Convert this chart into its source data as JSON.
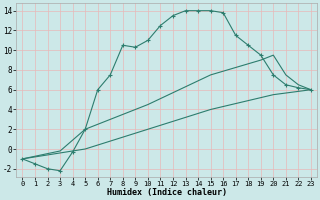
{
  "xlabel": "Humidex (Indice chaleur)",
  "bg_color": "#cce8e8",
  "grid_color": "#b8d8d8",
  "line_color": "#2d7d6e",
  "xlim": [
    -0.5,
    23.5
  ],
  "ylim": [
    -2.8,
    14.8
  ],
  "xticks": [
    0,
    1,
    2,
    3,
    4,
    5,
    6,
    7,
    8,
    9,
    10,
    11,
    12,
    13,
    14,
    15,
    16,
    17,
    18,
    19,
    20,
    21,
    22,
    23
  ],
  "yticks": [
    -2,
    0,
    2,
    4,
    6,
    8,
    10,
    12,
    14
  ],
  "line1_x": [
    0,
    1,
    2,
    3,
    4,
    5,
    6,
    7,
    8,
    9,
    10,
    11,
    12,
    13,
    14,
    15,
    16,
    17,
    18,
    19,
    20,
    21,
    22,
    23
  ],
  "line1_y": [
    -1.0,
    -1.5,
    -2.0,
    -2.2,
    -0.3,
    2.0,
    6.0,
    7.5,
    10.5,
    10.3,
    11.0,
    12.5,
    13.5,
    14.0,
    14.0,
    14.0,
    13.8,
    11.5,
    10.5,
    9.5,
    7.5,
    6.5,
    6.2,
    6.0
  ],
  "line2_x": [
    0,
    3,
    5,
    10,
    15,
    19,
    20,
    21,
    22,
    23
  ],
  "line2_y": [
    -1.0,
    -0.2,
    2.0,
    4.5,
    7.5,
    9.0,
    9.5,
    7.5,
    6.5,
    6.0
  ],
  "line3_x": [
    0,
    5,
    10,
    15,
    20,
    23
  ],
  "line3_y": [
    -1.0,
    0.0,
    2.0,
    4.0,
    5.5,
    6.0
  ]
}
